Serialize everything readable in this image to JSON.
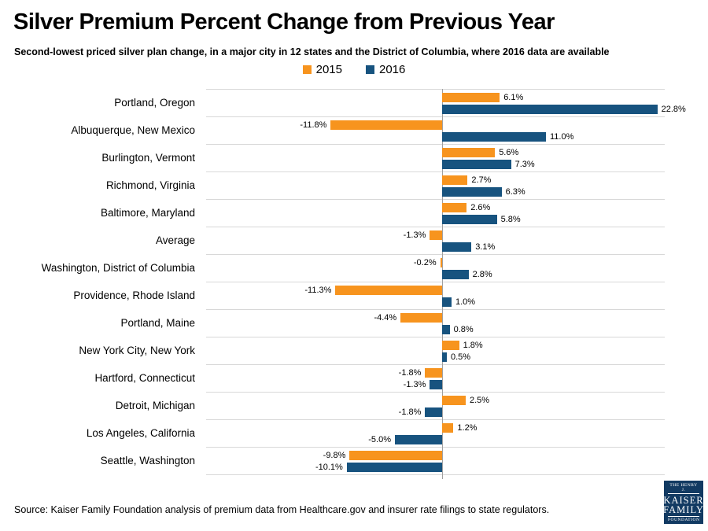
{
  "header": {
    "title": "Silver Premium Percent Change from Previous Year",
    "subtitle": "Second-lowest priced silver plan change, in a major city in 12 states and the District of Columbia, where 2016 data are available"
  },
  "legend": [
    {
      "label": "2015",
      "color": "#F7941E"
    },
    {
      "label": "2016",
      "color": "#17537F"
    }
  ],
  "chart_data": {
    "type": "bar",
    "orientation": "horizontal",
    "categories": [
      "Portland, Oregon",
      "Albuquerque, New Mexico",
      "Burlington, Vermont",
      "Richmond, Virginia",
      "Baltimore, Maryland",
      "Average",
      "Washington, District of Columbia",
      "Providence, Rhode Island",
      "Portland, Maine",
      "New York City, New York",
      "Hartford, Connecticut",
      "Detroit, Michigan",
      "Los Angeles, California",
      "Seattle, Washington"
    ],
    "series": [
      {
        "name": "2015",
        "color": "#F7941E",
        "values": [
          6.1,
          -11.8,
          5.6,
          2.7,
          2.6,
          -1.3,
          -0.2,
          -11.3,
          -4.4,
          1.8,
          -1.8,
          2.5,
          1.2,
          -9.8
        ],
        "labels": [
          "6.1%",
          "-11.8%",
          "5.6%",
          "2.7%",
          "2.6%",
          "-1.3%",
          "-0.2%",
          "-11.3%",
          "-4.4%",
          "1.8%",
          "-1.8%",
          "2.5%",
          "1.2%",
          "-9.8%"
        ]
      },
      {
        "name": "2016",
        "color": "#17537F",
        "values": [
          22.8,
          11.0,
          7.3,
          6.3,
          5.8,
          3.1,
          2.8,
          1.0,
          0.8,
          0.5,
          -1.3,
          -1.8,
          -5.0,
          -10.1
        ],
        "labels": [
          "22.8%",
          "11.0%",
          "7.3%",
          "6.3%",
          "5.8%",
          "3.1%",
          "2.8%",
          "1.0%",
          "0.8%",
          "0.5%",
          "-1.3%",
          "-1.8%",
          "-5.0%",
          "-10.1%"
        ]
      }
    ],
    "xlim": [
      -25,
      23.5
    ],
    "axis_zero_line": true,
    "gridlines": "horizontal row separators",
    "legend_position": "top center",
    "value_labels": "outside bar ends, one decimal with % sign"
  },
  "footer": {
    "source": "Source: Kaiser Family Foundation analysis of premium data from Healthcare.gov and insurer rate filings to state regulators."
  },
  "logo": {
    "line1": "THE HENRY J.",
    "line2": "KAISER",
    "line3": "FAMILY",
    "line4": "FOUNDATION",
    "bg_color": "#123a62"
  },
  "colors": {
    "series_2015": "#F7941E",
    "series_2016": "#17537F",
    "separator": "#d8d8d8",
    "axis": "#a0a0a0",
    "text": "#000000"
  }
}
